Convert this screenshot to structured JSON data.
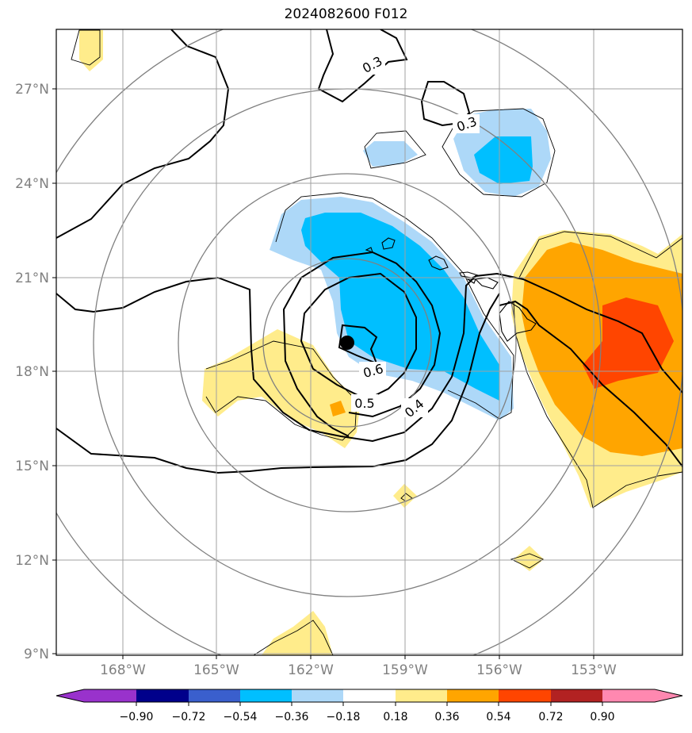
{
  "title": "2024082600 F012",
  "map": {
    "lat_labels": [
      "27°N",
      "24°N",
      "21°N",
      "18°N",
      "15°N",
      "12°N",
      "9°N"
    ],
    "lon_labels": [
      "168°W",
      "165°W",
      "162°W",
      "159°W",
      "156°W",
      "153°W"
    ],
    "contour_labels": [
      "0.3",
      "0.3",
      "0.6",
      "0.5",
      "0.4"
    ],
    "storm_center": "black-dot"
  },
  "colorbar": {
    "labels": [
      "−0.90",
      "−0.72",
      "−0.54",
      "−0.36",
      "−0.18",
      "0.18",
      "0.36",
      "0.54",
      "0.72",
      "0.90"
    ],
    "colors": [
      "#9932cc",
      "#00008b",
      "#3a5fcd",
      "#00bfff",
      "#add8f8",
      "#ffffff",
      "#ffec8b",
      "#ffa500",
      "#ff4500",
      "#b22222",
      "#ff88b0"
    ]
  }
}
